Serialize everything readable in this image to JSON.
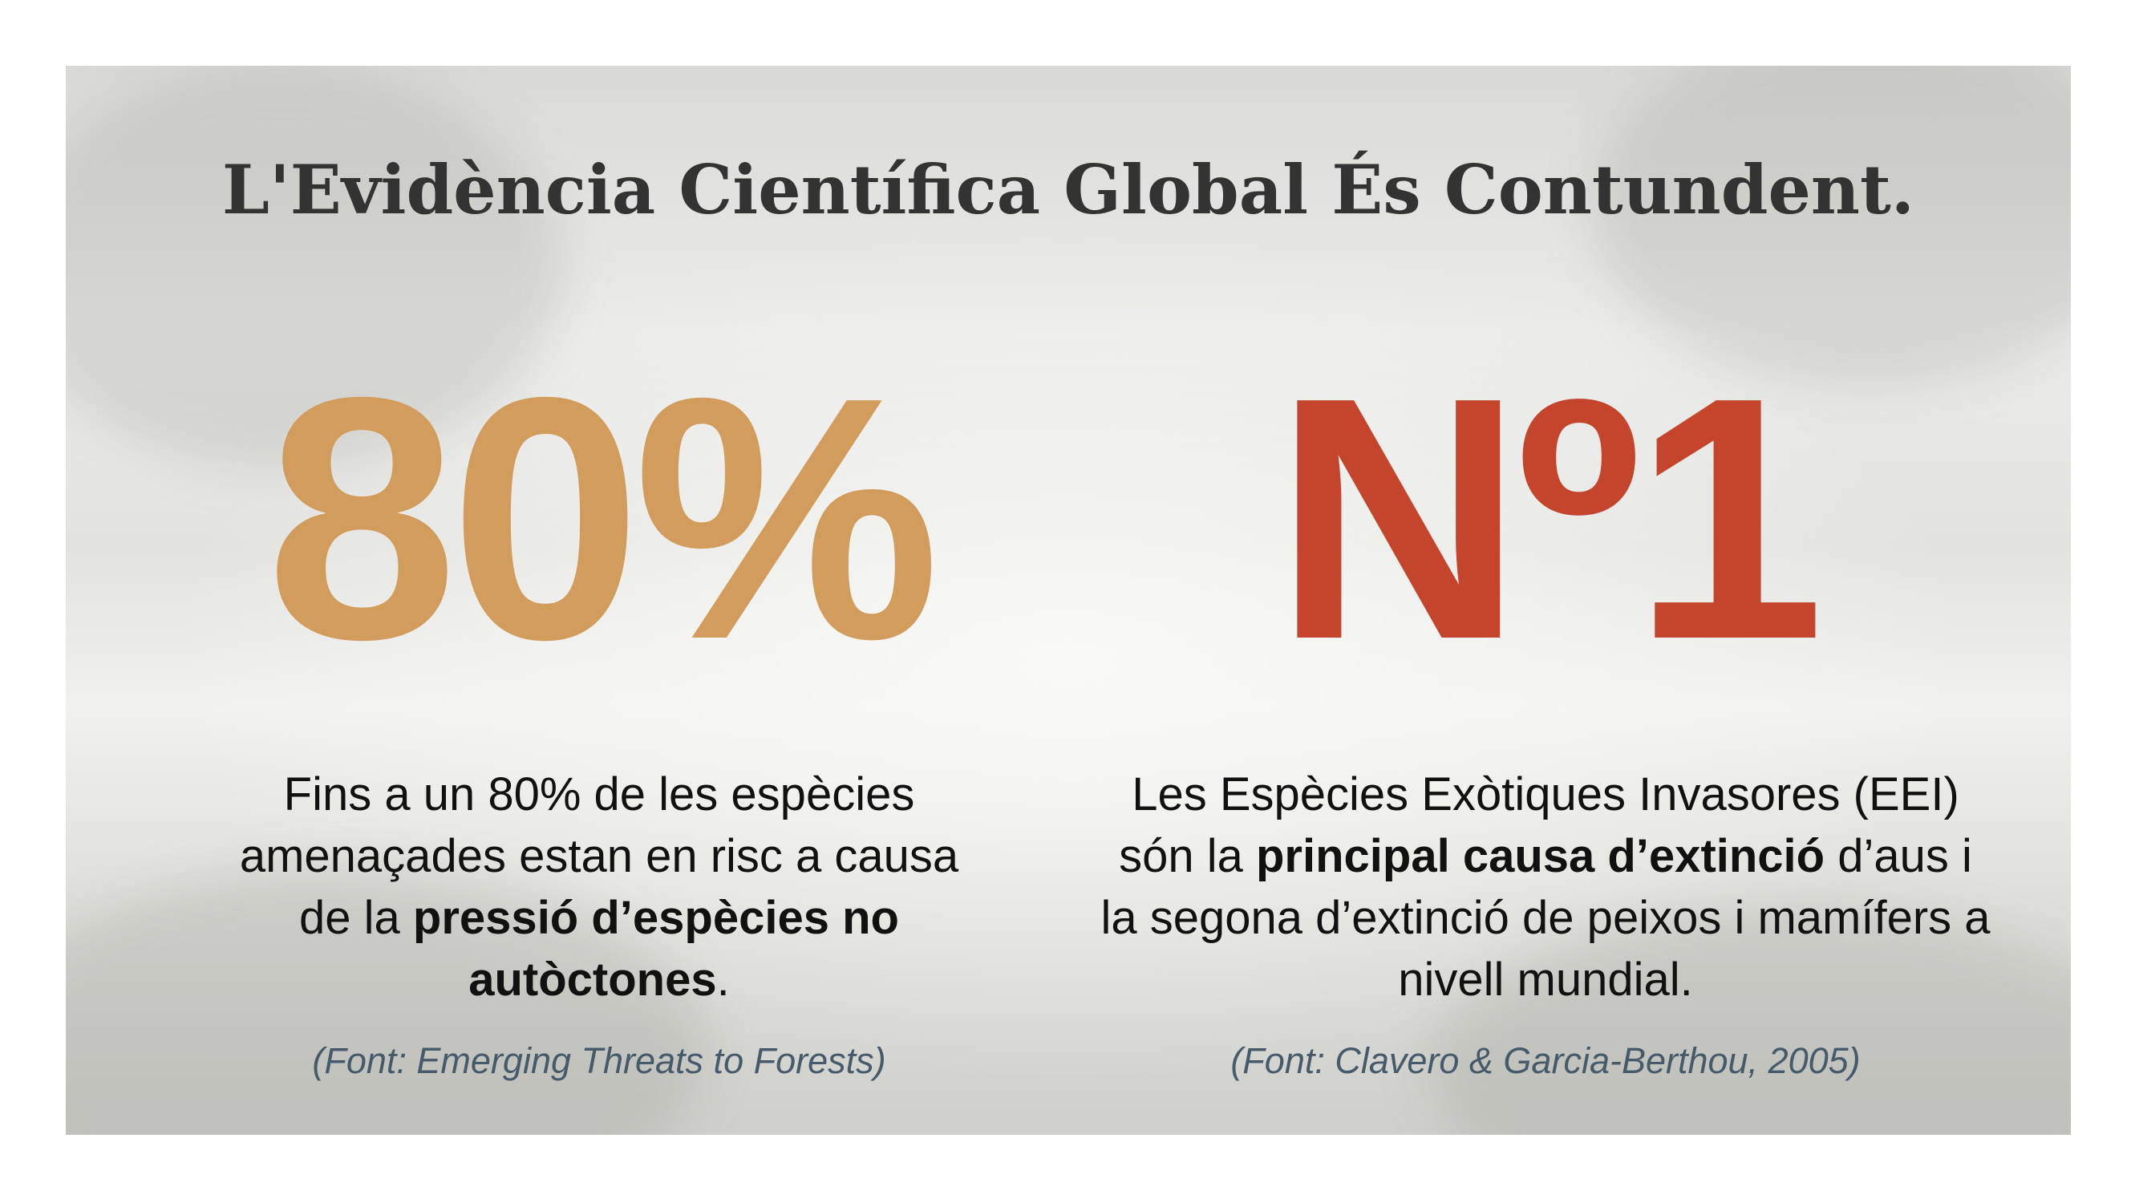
{
  "title": "L'Evidència Científica Global És Contundent.",
  "stats": [
    {
      "figure": "80%",
      "color": "#d29d5c",
      "description": [
        {
          "text": "Fins a un 80% de les espècies amenaçades estan en risc a causa de la ",
          "bold": false
        },
        {
          "text": "pressió d’espècies no autòctones",
          "bold": true
        },
        {
          "text": ".",
          "bold": false
        }
      ],
      "source": "(Font: Emerging Threats to Forests)"
    },
    {
      "figure": "Nº1",
      "color": "#c4452c",
      "description": [
        {
          "text": "Les Espècies Exòtiques Invasores (EEI) són la ",
          "bold": false
        },
        {
          "text": "principal causa d’extinció",
          "bold": true
        },
        {
          "text": " d’aus i la segona d’extinció de peixos i mamífers a nivell mundial.",
          "bold": false
        }
      ],
      "source": "(Font: Clavero & Garcia-Berthou, 2005)"
    }
  ]
}
